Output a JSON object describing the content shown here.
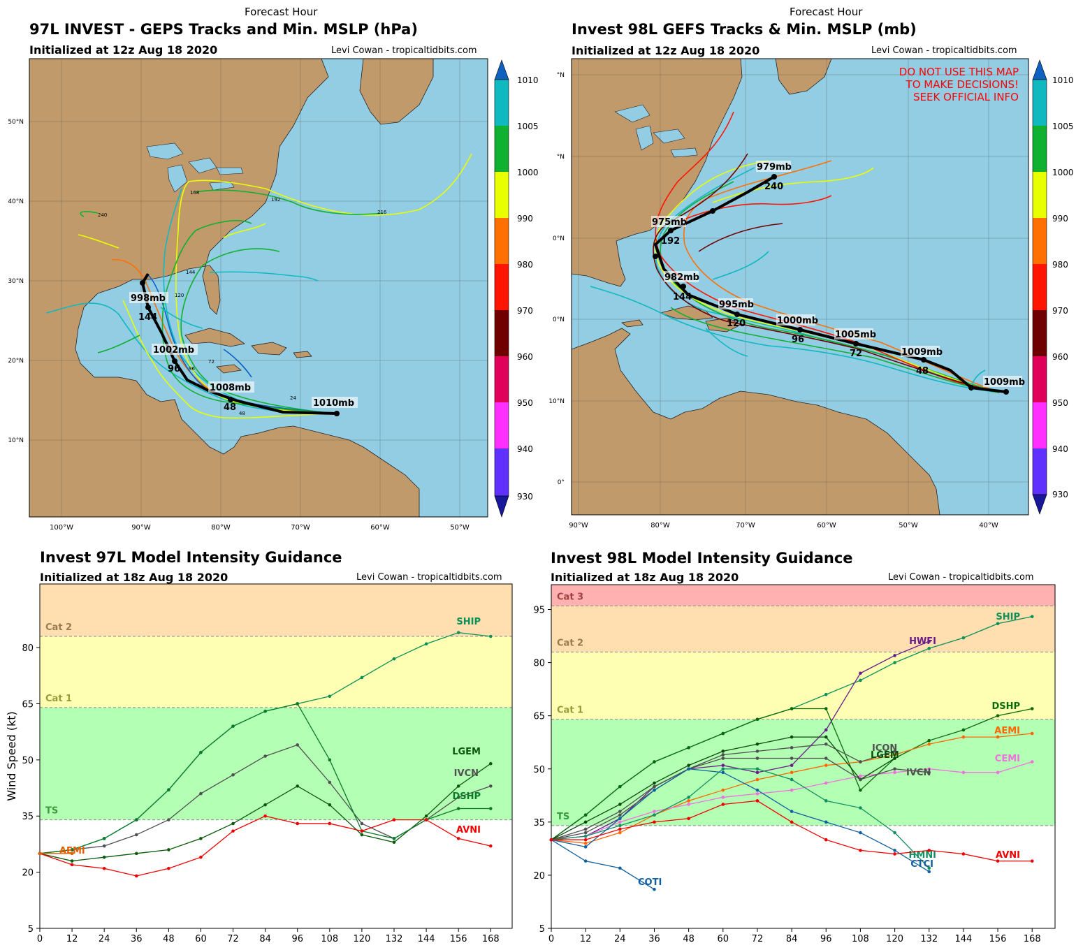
{
  "panels": [
    {
      "kind": "track_map",
      "forecast_hour_label": "Forecast Hour",
      "title": "97L INVEST - GEPS Tracks and Min. MSLP (hPa)",
      "initialized": "Initialized at 12z Aug 18 2020",
      "credit": "Levi Cowan - tropicaltidbits.com",
      "lat_labels": [
        "50°N",
        "40°N",
        "30°N",
        "20°N",
        "10°N"
      ],
      "lon_labels": [
        "100°W",
        "90°W",
        "80°W",
        "70°W",
        "60°W",
        "50°W"
      ],
      "colorbar_labels": [
        "1010",
        "1005",
        "1000",
        "990",
        "980",
        "970",
        "960",
        "950",
        "940",
        "930"
      ],
      "colorbar_colors": [
        "#10b8c0",
        "#10b030",
        "#e8ff00",
        "#ff7000",
        "#ff1500",
        "#700000",
        "#e0005a",
        "#ff30ff",
        "#6030ff"
      ],
      "mean_track_labels": [
        {
          "text": "1010mb",
          "kind": "mb"
        },
        {
          "text": "1008mb",
          "kind": "mb"
        },
        {
          "text": "48",
          "kind": "hr"
        },
        {
          "text": "1002mb",
          "kind": "mb"
        },
        {
          "text": "96",
          "kind": "hr"
        },
        {
          "text": "998mb",
          "kind": "mb"
        },
        {
          "text": "144",
          "kind": "hr"
        }
      ],
      "member_hour_labels": [
        "24",
        "48",
        "72",
        "96",
        "120",
        "144",
        "168",
        "192",
        "216",
        "240"
      ],
      "warning": []
    },
    {
      "kind": "track_map",
      "forecast_hour_label": "Forecast Hour",
      "title": "Invest 98L GEFS Tracks & Min. MSLP (mb)",
      "initialized": "Initialized at 12z Aug 18 2020",
      "credit": "Levi Cowan - tropicaltidbits.com",
      "lat_labels": [
        "°N",
        "°N",
        "0°N",
        "0°N",
        "10°N",
        "0°"
      ],
      "lon_labels": [
        "90°W",
        "80°W",
        "70°W",
        "60°W",
        "50°W",
        "40°W"
      ],
      "colorbar_labels": [
        "1010",
        "1005",
        "1000",
        "990",
        "980",
        "970",
        "960",
        "950",
        "940",
        "930"
      ],
      "colorbar_colors": [
        "#10b8c0",
        "#10b030",
        "#e8ff00",
        "#ff7000",
        "#ff1500",
        "#700000",
        "#e0005a",
        "#ff30ff",
        "#6030ff"
      ],
      "mean_track_labels": [
        {
          "text": "1009mb",
          "kind": "mb"
        },
        {
          "text": "1009mb",
          "kind": "mb"
        },
        {
          "text": "48",
          "kind": "hr"
        },
        {
          "text": "1005mb",
          "kind": "mb"
        },
        {
          "text": "72",
          "kind": "hr"
        },
        {
          "text": "1000mb",
          "kind": "mb"
        },
        {
          "text": "96",
          "kind": "hr"
        },
        {
          "text": "995mb",
          "kind": "mb"
        },
        {
          "text": "120",
          "kind": "hr"
        },
        {
          "text": "982mb",
          "kind": "mb"
        },
        {
          "text": "144",
          "kind": "hr"
        },
        {
          "text": "975mb",
          "kind": "mb"
        },
        {
          "text": "192",
          "kind": "hr"
        },
        {
          "text": "979mb",
          "kind": "mb"
        },
        {
          "text": "240",
          "kind": "hr"
        }
      ],
      "member_hour_labels": [],
      "warning": [
        "DO NOT USE THIS MAP",
        "TO MAKE DECISIONS!",
        "SEEK OFFICIAL INFO"
      ]
    }
  ],
  "chart_data": [
    {
      "type": "line",
      "title": "Invest 97L Model Intensity Guidance",
      "subtitle": "Initialized at 18z Aug 18 2020",
      "credit": "Levi Cowan - tropicaltidbits.com",
      "xlabel": "",
      "ylabel": "Wind Speed (kt)",
      "xlim": [
        0,
        176
      ],
      "ylim": [
        5,
        97
      ],
      "xticks": [
        0,
        12,
        24,
        36,
        48,
        60,
        72,
        84,
        96,
        108,
        120,
        132,
        144,
        156,
        168
      ],
      "yticks": [
        5,
        20,
        35,
        50,
        65,
        80
      ],
      "bands": [
        {
          "label": "TS",
          "from": 34,
          "to": 64,
          "color": "#b3ffb3",
          "label_color": "#3a9a3a"
        },
        {
          "label": "Cat 1",
          "from": 64,
          "to": 83,
          "color": "#ffffb3",
          "label_color": "#9a9a3a"
        },
        {
          "label": "Cat 2",
          "from": 83,
          "to": 97,
          "color": "#ffdeb0",
          "label_color": "#9a7a50"
        }
      ],
      "series": [
        {
          "name": "SHIP",
          "color": "#0b9058",
          "x": [
            0,
            12,
            24,
            36,
            48,
            60,
            72,
            84,
            96,
            108,
            120,
            132,
            144,
            156,
            168
          ],
          "y": [
            25,
            26,
            29,
            34,
            42,
            52,
            59,
            63,
            65,
            67,
            72,
            77,
            81,
            84,
            83
          ]
        },
        {
          "name": "LGEM",
          "color": "#0a5a0a",
          "x": [
            0,
            12,
            24,
            36,
            48,
            60,
            72,
            84,
            96,
            108,
            120,
            132,
            144,
            156,
            168
          ],
          "y": [
            25,
            23,
            24,
            25,
            26,
            29,
            33,
            38,
            43,
            38,
            30,
            28,
            35,
            43,
            49
          ]
        },
        {
          "name": "IVCN",
          "color": "#505050",
          "x": [
            0,
            12,
            24,
            36,
            48,
            60,
            72,
            84,
            96,
            108,
            120,
            132,
            144,
            156,
            168
          ],
          "y": [
            25,
            26,
            27,
            30,
            34,
            41,
            46,
            51,
            54,
            44,
            33,
            29,
            34,
            40,
            43
          ]
        },
        {
          "name": "DSHP",
          "color": "#0a7a2a",
          "x": [
            0,
            12,
            24,
            36,
            48,
            60,
            72,
            84,
            96,
            108,
            120,
            132,
            144,
            156,
            168
          ],
          "y": [
            25,
            26,
            29,
            34,
            42,
            52,
            59,
            63,
            65,
            50,
            31,
            29,
            34,
            37,
            37
          ]
        },
        {
          "name": "AVNI",
          "color": "#ee0000",
          "x": [
            0,
            12,
            24,
            36,
            48,
            60,
            72,
            84,
            96,
            108,
            120,
            132,
            144,
            156,
            168
          ],
          "y": [
            25,
            22,
            21,
            19,
            21,
            24,
            31,
            35,
            33,
            33,
            31,
            34,
            34,
            29,
            27
          ]
        },
        {
          "name": "AEMI",
          "color": "#e06000",
          "x": [
            0,
            12
          ],
          "y": [
            25,
            25
          ]
        }
      ]
    },
    {
      "type": "line",
      "title": "Invest 98L Model Intensity Guidance",
      "subtitle": "Initialized at 18z Aug 18 2020",
      "credit": "Levi Cowan - tropicaltidbits.com",
      "xlabel": "",
      "ylabel": "",
      "xlim": [
        0,
        176
      ],
      "ylim": [
        5,
        102
      ],
      "xticks": [
        0,
        12,
        24,
        36,
        48,
        60,
        72,
        84,
        96,
        108,
        120,
        132,
        144,
        156,
        168
      ],
      "yticks": [
        5,
        20,
        35,
        50,
        65,
        80,
        95
      ],
      "bands": [
        {
          "label": "TS",
          "from": 34,
          "to": 64,
          "color": "#b3ffb3",
          "label_color": "#3a9a3a"
        },
        {
          "label": "Cat 1",
          "from": 64,
          "to": 83,
          "color": "#ffffb3",
          "label_color": "#9a9a3a"
        },
        {
          "label": "Cat 2",
          "from": 83,
          "to": 96,
          "color": "#ffdeb0",
          "label_color": "#9a7a50"
        },
        {
          "label": "Cat 3",
          "from": 96,
          "to": 102,
          "color": "#ffb0b0",
          "label_color": "#a04040"
        }
      ],
      "series": [
        {
          "name": "SHIP",
          "color": "#0b9058",
          "x": [
            0,
            12,
            24,
            36,
            48,
            60,
            72,
            84,
            96,
            108,
            120,
            132,
            144,
            156,
            168
          ],
          "y": [
            30,
            37,
            45,
            52,
            56,
            60,
            64,
            67,
            71,
            75,
            80,
            84,
            87,
            91,
            93
          ]
        },
        {
          "name": "HWFI",
          "color": "#6a1a8a",
          "x": [
            0,
            12,
            24,
            36,
            48,
            60,
            72,
            84,
            96,
            108,
            120,
            132
          ],
          "y": [
            30,
            31,
            36,
            45,
            50,
            51,
            49,
            51,
            61,
            77,
            82,
            86
          ]
        },
        {
          "name": "DSHP",
          "color": "#0a6a0a",
          "x": [
            0,
            12,
            24,
            36,
            48,
            60,
            72,
            84,
            96,
            108,
            120,
            132,
            144,
            156,
            168
          ],
          "y": [
            30,
            37,
            45,
            52,
            56,
            60,
            64,
            67,
            67,
            44,
            53,
            58,
            61,
            65,
            67
          ]
        },
        {
          "name": "AEMI",
          "color": "#ff6600",
          "x": [
            0,
            12,
            24,
            36,
            48,
            60,
            72,
            84,
            96,
            108,
            120,
            132,
            144,
            156,
            168
          ],
          "y": [
            30,
            29,
            32,
            37,
            41,
            44,
            47,
            49,
            51,
            52,
            54,
            57,
            59,
            59,
            60
          ]
        },
        {
          "name": "CEMI",
          "color": "#f070e0",
          "x": [
            0,
            12,
            24,
            36,
            48,
            60,
            72,
            84,
            96,
            108,
            120,
            132,
            144,
            156,
            168
          ],
          "y": [
            30,
            31,
            35,
            38,
            40,
            42,
            43,
            44,
            46,
            48,
            49,
            50,
            49,
            49,
            52
          ]
        },
        {
          "name": "ICON",
          "color": "#505050",
          "x": [
            0,
            12,
            24,
            36,
            48,
            60,
            72,
            84,
            96,
            108,
            120
          ],
          "y": [
            30,
            33,
            38,
            45,
            50,
            54,
            55,
            56,
            57,
            52,
            55
          ]
        },
        {
          "name": "LGEM",
          "color": "#0a4a0a",
          "x": [
            0,
            12,
            24,
            36,
            48,
            60,
            72,
            84,
            96,
            108,
            120
          ],
          "y": [
            30,
            35,
            40,
            46,
            51,
            55,
            57,
            59,
            59,
            47,
            53
          ]
        },
        {
          "name": "IVCN",
          "color": "#505050",
          "x": [
            0,
            12,
            24,
            36,
            48,
            60,
            72,
            84,
            96,
            108,
            120,
            132
          ],
          "y": [
            30,
            32,
            37,
            44,
            50,
            53,
            53,
            53,
            53,
            47,
            50,
            49
          ]
        },
        {
          "name": "HMNI",
          "color": "#109060",
          "x": [
            0,
            12,
            24,
            36,
            48,
            60,
            72,
            84,
            96,
            108,
            120,
            132
          ],
          "y": [
            30,
            31,
            34,
            37,
            42,
            50,
            50,
            47,
            41,
            39,
            32,
            22
          ]
        },
        {
          "name": "CTCI",
          "color": "#1060a0",
          "x": [
            0,
            12,
            24,
            36,
            48,
            60,
            72,
            84,
            96,
            108,
            120,
            132
          ],
          "y": [
            30,
            28,
            36,
            44,
            50,
            49,
            44,
            38,
            35,
            32,
            27,
            21
          ]
        },
        {
          "name": "COTI",
          "color": "#1060a0",
          "x": [
            0,
            12,
            24,
            36
          ],
          "y": [
            30,
            24,
            22,
            16
          ]
        },
        {
          "name": "AVNI",
          "color": "#ee0000",
          "x": [
            0,
            12,
            24,
            36,
            48,
            60,
            72,
            84,
            96,
            108,
            120,
            132,
            144,
            156,
            168
          ],
          "y": [
            30,
            30,
            33,
            35,
            36,
            40,
            41,
            35,
            30,
            27,
            26,
            27,
            26,
            24,
            24
          ]
        }
      ]
    }
  ]
}
